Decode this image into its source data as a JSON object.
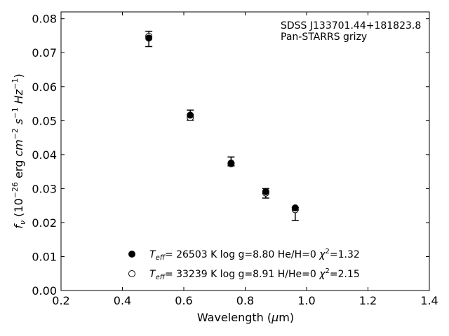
{
  "chart_data": {
    "type": "scatter",
    "xlabel": "Wavelength (μm)",
    "ylabel": "f_ν (10⁻²⁶ erg cm⁻² s⁻¹ Hz⁻¹)",
    "xlim": [
      0.2,
      1.4
    ],
    "ylim": [
      0.0,
      0.082
    ],
    "xticks": [
      "0.2",
      "0.4",
      "0.6",
      "0.8",
      "1.0",
      "1.2",
      "1.4"
    ],
    "yticks": [
      "0.00",
      "0.01",
      "0.02",
      "0.03",
      "0.04",
      "0.05",
      "0.06",
      "0.07",
      "0.08"
    ],
    "grid": false,
    "annotation": {
      "line1": "SDSS J133701.44+181823.8",
      "line2": "Pan-STARRS grizy"
    },
    "legend": {
      "position": "bottom-center",
      "entries": [
        {
          "marker": "filled",
          "label": "Teff= 26503 K  log g=8.80  He/H=0  χ²=1.32"
        },
        {
          "marker": "open",
          "label": "Teff= 33239 K  log g=8.91  H/He=0  χ²=2.15"
        }
      ]
    },
    "observed": {
      "wavelength": [
        0.486,
        0.621,
        0.754,
        0.867,
        0.963
      ],
      "flux": [
        0.0741,
        0.0514,
        0.0374,
        0.029,
        0.024
      ],
      "err_low": [
        0.0023,
        0.0013,
        0.0007,
        0.0018,
        0.0034
      ],
      "err_high": [
        0.0022,
        0.0017,
        0.0019,
        0.001,
        0.0004
      ]
    },
    "series": [
      {
        "marker": "filled",
        "x": [
          0.486,
          0.621,
          0.754,
          0.867,
          0.963
        ],
        "y": [
          0.0743,
          0.0516,
          0.0375,
          0.0291,
          0.0243
        ]
      },
      {
        "marker": "open",
        "x": [
          0.486,
          0.621,
          0.754,
          0.867,
          0.963
        ],
        "y": [
          0.0748,
          0.0509,
          0.0373,
          0.0287,
          0.0238
        ]
      }
    ]
  }
}
